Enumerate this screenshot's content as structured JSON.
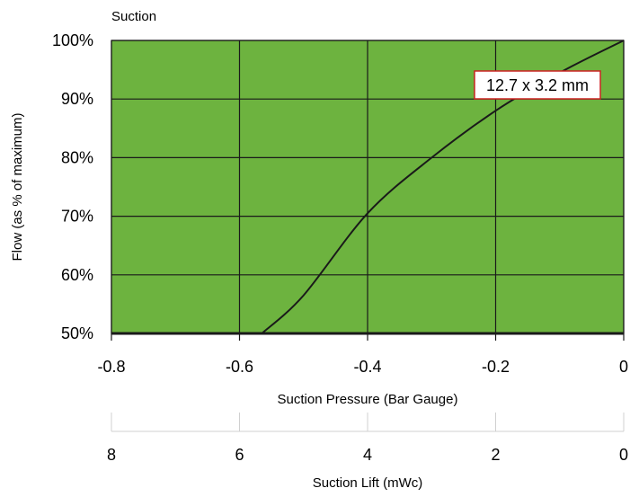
{
  "chart_data": {
    "type": "line",
    "title": "Suction",
    "ylabel": "Flow (as % of maximum)",
    "xlabel": "Suction Pressure (Bar Gauge)",
    "xlim": [
      -0.8,
      0
    ],
    "ylim": [
      50,
      100
    ],
    "x_ticks": [
      "-0.8",
      "-0.6",
      "-0.4",
      "-0.2",
      "0"
    ],
    "x_tick_values": [
      -0.8,
      -0.6,
      -0.4,
      -0.2,
      0
    ],
    "y_ticks": [
      "50%",
      "60%",
      "70%",
      "80%",
      "90%",
      "100%"
    ],
    "y_tick_values": [
      50,
      60,
      70,
      80,
      90,
      100
    ],
    "secondary_x_axis": {
      "label": "Suction Lift (mWc)",
      "ticks": [
        "8",
        "6",
        "4",
        "2",
        "0"
      ],
      "tick_values": [
        8,
        6,
        4,
        2,
        0
      ]
    },
    "grid": true,
    "plot_background": "#6db33f",
    "line_color": "#1a1a1a",
    "label_border_color": "#cc2222",
    "series": [
      {
        "name": "12.7 x 3.2 mm",
        "x": [
          -0.565,
          -0.5,
          -0.4,
          -0.3,
          -0.2,
          -0.1,
          0
        ],
        "y": [
          50,
          56.5,
          70.5,
          80,
          88,
          94.5,
          100
        ]
      }
    ]
  }
}
